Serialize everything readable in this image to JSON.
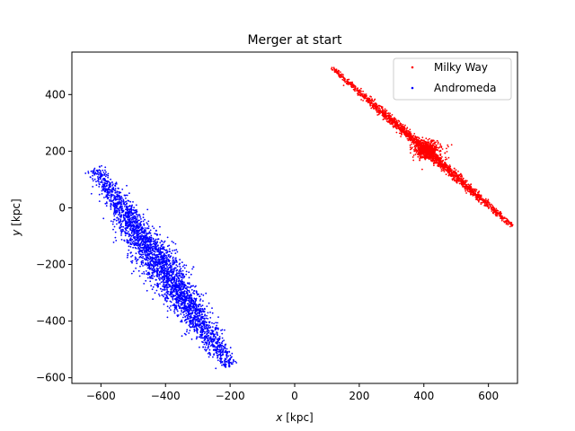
{
  "chart_data": {
    "type": "scatter",
    "title": "Merger at start",
    "xlabel": {
      "var": "x",
      "unit": " [kpc]"
    },
    "ylabel": {
      "var": "y",
      "unit": " [kpc]"
    },
    "xlim": [
      -690,
      690
    ],
    "ylim": [
      -620,
      550
    ],
    "xticks": [
      -600,
      -400,
      -200,
      0,
      200,
      400,
      600
    ],
    "yticks": [
      -600,
      -400,
      -200,
      0,
      200,
      400
    ],
    "grid": false,
    "legend_position": "top-right",
    "series": [
      {
        "name": "Milky Way",
        "color": "#ff0000",
        "center": [
          410,
          205
        ],
        "endpoints": [
          [
            115,
            495
          ],
          [
            675,
            -65
          ]
        ],
        "spread": 8,
        "bulge_radius": 28,
        "n_points": 2600
      },
      {
        "name": "Andromeda",
        "color": "#0000ff",
        "center": [
          -400,
          -210
        ],
        "endpoints": [
          [
            -620,
            140
          ],
          [
            -200,
            -560
          ]
        ],
        "spread": 30,
        "n_points": 3000
      }
    ]
  }
}
